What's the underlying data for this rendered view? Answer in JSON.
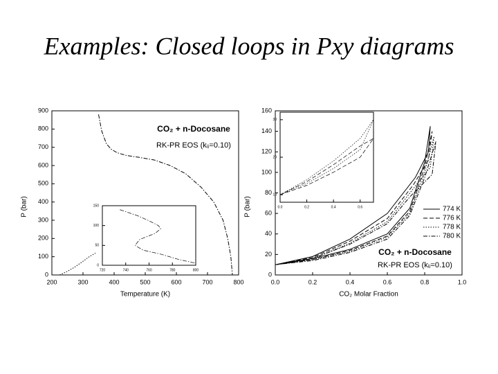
{
  "title": "Examples: Closed loops in Pxy diagrams",
  "chart_data": [
    {
      "type": "line",
      "x_label": "Temperature (K)",
      "y_label": "P (bar)",
      "annotations": [
        "CO₂ + n-Docosane",
        "RK-PR EOS (kᵢⱼ=0.10)"
      ],
      "xlim": [
        200,
        800
      ],
      "xticks": [
        200,
        300,
        400,
        500,
        600,
        700,
        800
      ],
      "ylim": [
        0,
        900
      ],
      "yticks": [
        0,
        100,
        200,
        300,
        400,
        500,
        600,
        700,
        800,
        900
      ],
      "series": [
        {
          "color": "#000000",
          "line_style": "dashdot",
          "x": [
            350,
            360,
            375,
            390,
            410,
            440,
            480,
            530,
            580,
            630,
            680,
            720,
            750,
            765,
            775,
            780
          ],
          "values": [
            880,
            790,
            720,
            690,
            670,
            655,
            645,
            630,
            600,
            555,
            480,
            400,
            300,
            200,
            100,
            0
          ]
        },
        {
          "color": "#000000",
          "line_style": "dotted",
          "x": [
            225,
            250,
            275,
            300,
            320,
            340
          ],
          "values": [
            0,
            20,
            45,
            75,
            100,
            120
          ]
        }
      ]
    },
    {
      "type": "line",
      "x_label": "CO₂ Molar Fraction",
      "y_label": "P (bar)",
      "annotations": [
        "CO₂ + n-Docosane",
        "RK-PR EOS (kᵢⱼ=0.10)"
      ],
      "xlim": [
        0,
        1
      ],
      "xticks": [
        {
          "value": 0,
          "label": "0.0"
        },
        0.2,
        0.4,
        0.6,
        0.8,
        {
          "value": 1,
          "label": "1.0"
        }
      ],
      "ylim": [
        0,
        160
      ],
      "yticks": [
        0,
        20,
        40,
        60,
        80,
        100,
        120,
        140,
        160
      ],
      "legend": "right",
      "series": [
        {
          "name": "774 K",
          "color": "#000000",
          "line_style": "solid",
          "x": [
            0,
            0.2,
            0.4,
            0.6,
            0.72,
            0.8,
            0.83,
            0.82,
            0.75,
            0.6,
            0.4,
            0.2,
            0
          ],
          "values": [
            10,
            16,
            25,
            40,
            65,
            110,
            145,
            120,
            95,
            60,
            35,
            18,
            10
          ]
        },
        {
          "name": "776 K",
          "color": "#000000",
          "line_style": "dashed",
          "x": [
            0,
            0.2,
            0.4,
            0.6,
            0.72,
            0.8,
            0.84,
            0.82,
            0.74,
            0.6,
            0.4,
            0.2,
            0
          ],
          "values": [
            10,
            15,
            24,
            38,
            62,
            105,
            140,
            112,
            88,
            55,
            33,
            17,
            10
          ]
        },
        {
          "name": "778 K",
          "color": "#000000",
          "line_style": "dotted",
          "x": [
            0,
            0.2,
            0.4,
            0.6,
            0.72,
            0.8,
            0.85,
            0.83,
            0.73,
            0.6,
            0.4,
            0.2,
            0
          ],
          "values": [
            10,
            15,
            23,
            37,
            60,
            100,
            135,
            105,
            82,
            52,
            31,
            16,
            10
          ]
        },
        {
          "name": "780 K",
          "color": "#000000",
          "line_style": "dashdot",
          "x": [
            0,
            0.2,
            0.4,
            0.6,
            0.72,
            0.8,
            0.86,
            0.84,
            0.72,
            0.6,
            0.4,
            0.2,
            0
          ],
          "values": [
            10,
            14,
            22,
            35,
            58,
            95,
            130,
            98,
            76,
            50,
            30,
            16,
            10
          ]
        }
      ]
    },
    {
      "type": "line",
      "xlim": [
        720,
        800
      ],
      "xticks": [
        720,
        740,
        760,
        780,
        800
      ],
      "ylim": [
        0,
        150
      ],
      "yticks": [
        0,
        50,
        100,
        150
      ],
      "series": [
        {
          "color": "#000000",
          "line_style": "dashdot",
          "x": [
            735,
            750,
            760,
            768,
            770,
            765,
            752,
            748,
            755,
            770,
            785,
            800
          ],
          "values": [
            140,
            125,
            112,
            100,
            92,
            80,
            65,
            50,
            38,
            28,
            15,
            5
          ]
        }
      ]
    },
    {
      "type": "line",
      "xlim": [
        0,
        0.7
      ],
      "xticks": [
        {
          "value": 0,
          "label": "0.0"
        },
        0.2,
        0.4,
        0.6
      ],
      "ylim": [
        8,
        32
      ],
      "yticks": [
        10,
        20,
        30
      ],
      "series": [
        {
          "color": "#000000",
          "line_style": "dotted",
          "x": [
            0,
            0.2,
            0.4,
            0.6,
            0.7,
            0.6,
            0.4,
            0.2,
            0
          ],
          "values": [
            10,
            13,
            17,
            22,
            30,
            25,
            19,
            14,
            10
          ]
        },
        {
          "color": "#000000",
          "line_style": "dashed",
          "x": [
            0,
            0.2,
            0.4,
            0.6,
            0.7,
            0.6,
            0.4,
            0.2,
            0
          ],
          "values": [
            10,
            12.5,
            16,
            20,
            25,
            23,
            18,
            13.5,
            10
          ]
        }
      ]
    }
  ]
}
